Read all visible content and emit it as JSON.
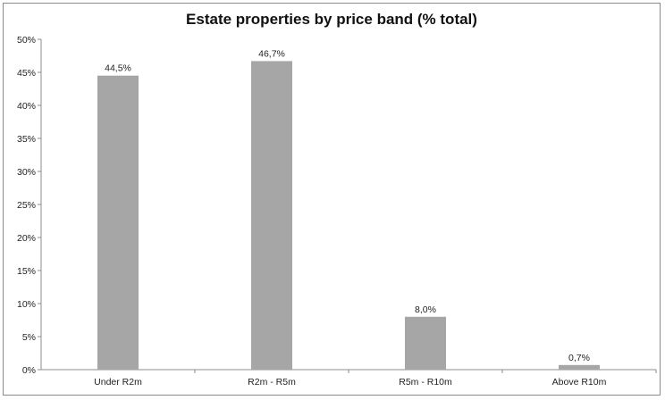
{
  "chart_data": {
    "type": "bar",
    "title": "Estate properties by price band (% total)",
    "xlabel": "",
    "ylabel": "",
    "categories": [
      "Under R2m",
      "R2m - R5m",
      "R5m - R10m",
      "Above R10m"
    ],
    "values": [
      44.5,
      46.7,
      8.0,
      0.7
    ],
    "data_labels": [
      "44,5%",
      "46,7%",
      "8,0%",
      "0,7%"
    ],
    "ylim": [
      0,
      50
    ],
    "y_ticks": [
      "0%",
      "5%",
      "10%",
      "15%",
      "20%",
      "25%",
      "30%",
      "35%",
      "40%",
      "45%",
      "50%"
    ],
    "bar_color": "#a6a6a6",
    "grid": false,
    "legend": "none"
  }
}
